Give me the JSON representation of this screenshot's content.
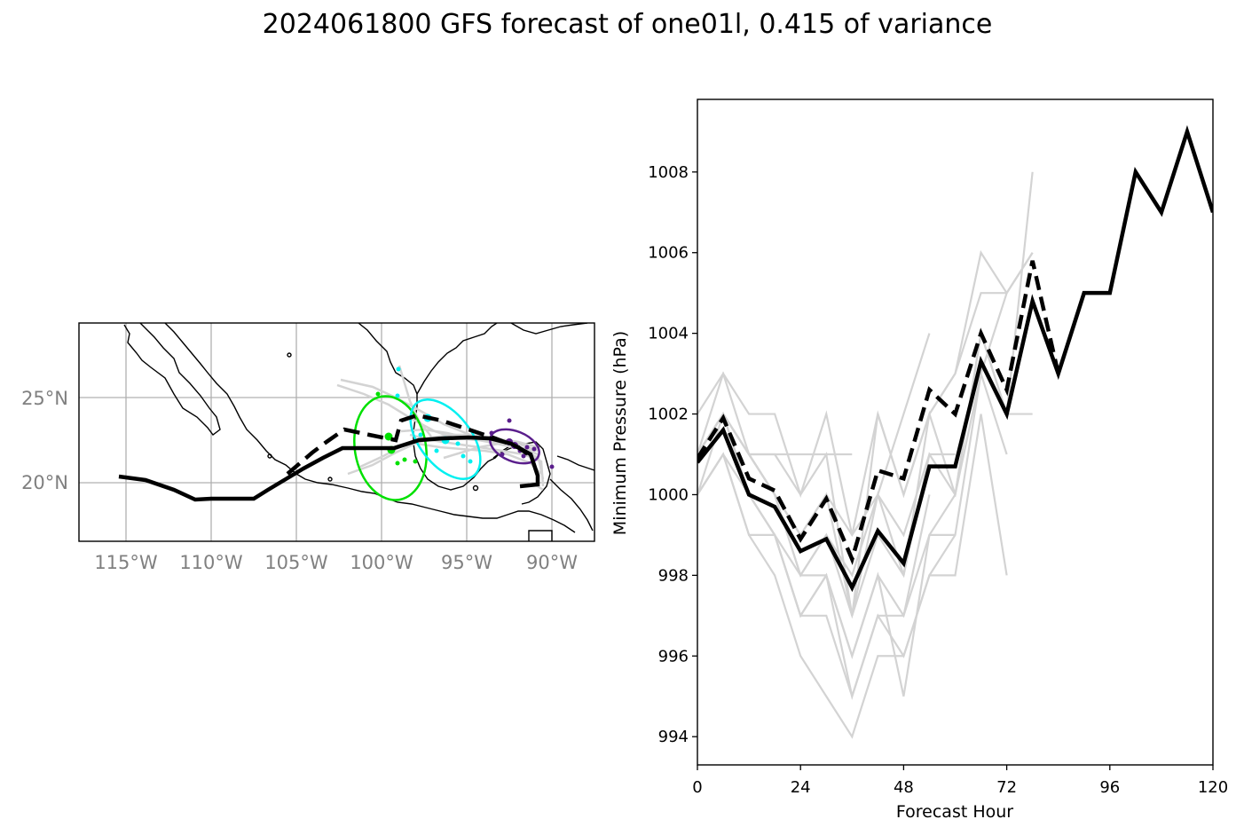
{
  "title": "2024061800 GFS forecast of one01l, 0.415 of variance",
  "map": {
    "lat_labels": [
      "25°N",
      "20°N"
    ],
    "lon_labels": [
      "115°W",
      "110°W",
      "105°W",
      "100°W",
      "95°W",
      "90°W"
    ],
    "lon_range": [
      -118.2,
      -88.0
    ],
    "lat_range": [
      16.6,
      29.4
    ],
    "gridlines": true,
    "ellipse_colors": [
      "#00e000",
      "#00f0f0",
      "#5a1e8c"
    ],
    "track_color": "#000000",
    "ensemble_color": "#d3d3d3"
  },
  "chart_data": {
    "type": "line",
    "xlabel": "Forecast Hour",
    "ylabel": "Minimum Pressure (hPa)",
    "xlim": [
      0,
      120
    ],
    "ylim": [
      993.3,
      1009.8
    ],
    "xticks": [
      0,
      24,
      48,
      72,
      96,
      120
    ],
    "yticks": [
      994,
      996,
      998,
      1000,
      1002,
      1004,
      1006,
      1008
    ],
    "grid": false,
    "series": [
      {
        "style": "solid-black",
        "x": [
          0,
          6,
          12,
          18,
          24,
          30,
          36,
          42,
          48,
          54,
          60,
          66,
          72,
          78,
          84,
          90,
          96,
          102,
          108,
          114,
          120
        ],
        "y": [
          1000.8,
          1001.6,
          1000.0,
          999.7,
          998.6,
          998.9,
          997.7,
          999.1,
          998.3,
          1000.7,
          1000.7,
          1003.3,
          1002.0,
          1004.8,
          1003.0,
          1005.0,
          1005.0,
          1008.0,
          1007.0,
          1009.0,
          1007.0
        ]
      },
      {
        "style": "dashed-black",
        "x": [
          0,
          6,
          12,
          18,
          24,
          30,
          36,
          42,
          48,
          54,
          60,
          66,
          72,
          78,
          84
        ],
        "y": [
          1000.9,
          1001.9,
          1000.4,
          1000.1,
          998.9,
          999.9,
          998.4,
          1000.6,
          1000.4,
          1002.6,
          1002.0,
          1004.0,
          1002.6,
          1005.8,
          1003.0
        ]
      },
      {
        "style": "gray",
        "x": [
          0,
          6,
          12,
          18,
          24,
          30,
          36,
          42,
          48,
          54,
          60
        ],
        "y": [
          1001,
          1002,
          1001,
          1000,
          999,
          1000,
          999,
          1000,
          999,
          1001,
          1001
        ]
      },
      {
        "style": "gray",
        "x": [
          0,
          6,
          12,
          18,
          24,
          30,
          36,
          42,
          48,
          54,
          60,
          66,
          72
        ],
        "y": [
          1001,
          1003,
          1002,
          1002,
          1000,
          1002,
          999,
          1002,
          1000,
          1002,
          1003,
          1006,
          1005
        ]
      },
      {
        "style": "gray",
        "x": [
          0,
          6,
          12,
          18,
          24,
          30,
          36,
          42,
          48,
          54,
          60,
          66,
          72,
          78
        ],
        "y": [
          1000,
          1002,
          1001,
          1000,
          998,
          998,
          996,
          998,
          997,
          999,
          1000,
          1003,
          1005,
          1006
        ]
      },
      {
        "style": "gray",
        "x": [
          0,
          6,
          12,
          18,
          24,
          30,
          36,
          42,
          48,
          54,
          60,
          66,
          72
        ],
        "y": [
          1000,
          1001,
          999,
          999,
          997,
          998,
          995,
          997,
          996,
          998,
          999,
          1003,
          1001
        ]
      },
      {
        "style": "gray",
        "x": [
          0,
          6,
          12,
          18,
          24,
          30,
          36,
          42,
          48,
          54,
          60,
          66,
          72
        ],
        "y": [
          1000,
          1001,
          999,
          998,
          996,
          995,
          994,
          996,
          996,
          998,
          998,
          1002,
          998
        ]
      },
      {
        "style": "gray",
        "x": [
          0,
          6,
          12,
          18,
          24,
          30,
          36,
          42,
          48,
          54
        ],
        "y": [
          1001,
          1002,
          1000,
          999,
          997,
          997,
          995,
          997,
          997,
          1000
        ]
      },
      {
        "style": "gray",
        "x": [
          0,
          6,
          12,
          18,
          24,
          30,
          36,
          42,
          48,
          54,
          60,
          66,
          72,
          78
        ],
        "y": [
          1002,
          1003,
          1001,
          1000,
          999,
          1000,
          997,
          1000,
          998,
          1002,
          1003,
          1005,
          1005,
          1006
        ]
      },
      {
        "style": "gray",
        "x": [
          0,
          6,
          12,
          18,
          24,
          30,
          36,
          42,
          48,
          54,
          60,
          66,
          72,
          78
        ],
        "y": [
          1001,
          1002,
          1000,
          999,
          998,
          999,
          997,
          999,
          998,
          1001,
          1000,
          1004,
          1002,
          1008
        ]
      },
      {
        "style": "gray",
        "x": [
          0,
          6,
          12,
          18,
          24,
          30,
          36,
          42,
          48,
          54,
          60
        ],
        "y": [
          1000,
          1001,
          1000,
          999,
          997,
          998,
          996,
          998,
          995,
          999,
          999
        ]
      },
      {
        "style": "gray",
        "x": [
          0,
          6,
          12,
          18,
          24,
          30,
          36,
          42,
          48,
          54,
          60,
          66,
          72,
          78
        ],
        "y": [
          1001,
          1002,
          1001,
          1001,
          1000,
          1001,
          997,
          1002,
          1000,
          1002,
          1000,
          1004,
          1002,
          1002
        ]
      },
      {
        "style": "gray",
        "x": [
          0,
          6,
          12,
          18,
          24,
          30,
          36,
          42,
          48,
          54
        ],
        "y": [
          1001,
          1002,
          1001,
          1000,
          998,
          999,
          998,
          1000,
          1002,
          1004
        ]
      },
      {
        "style": "gray",
        "x": [
          0,
          6,
          12,
          18,
          24,
          30,
          36
        ],
        "y": [
          1001,
          1002,
          1001,
          1001,
          1001,
          1001,
          1001
        ]
      }
    ]
  }
}
